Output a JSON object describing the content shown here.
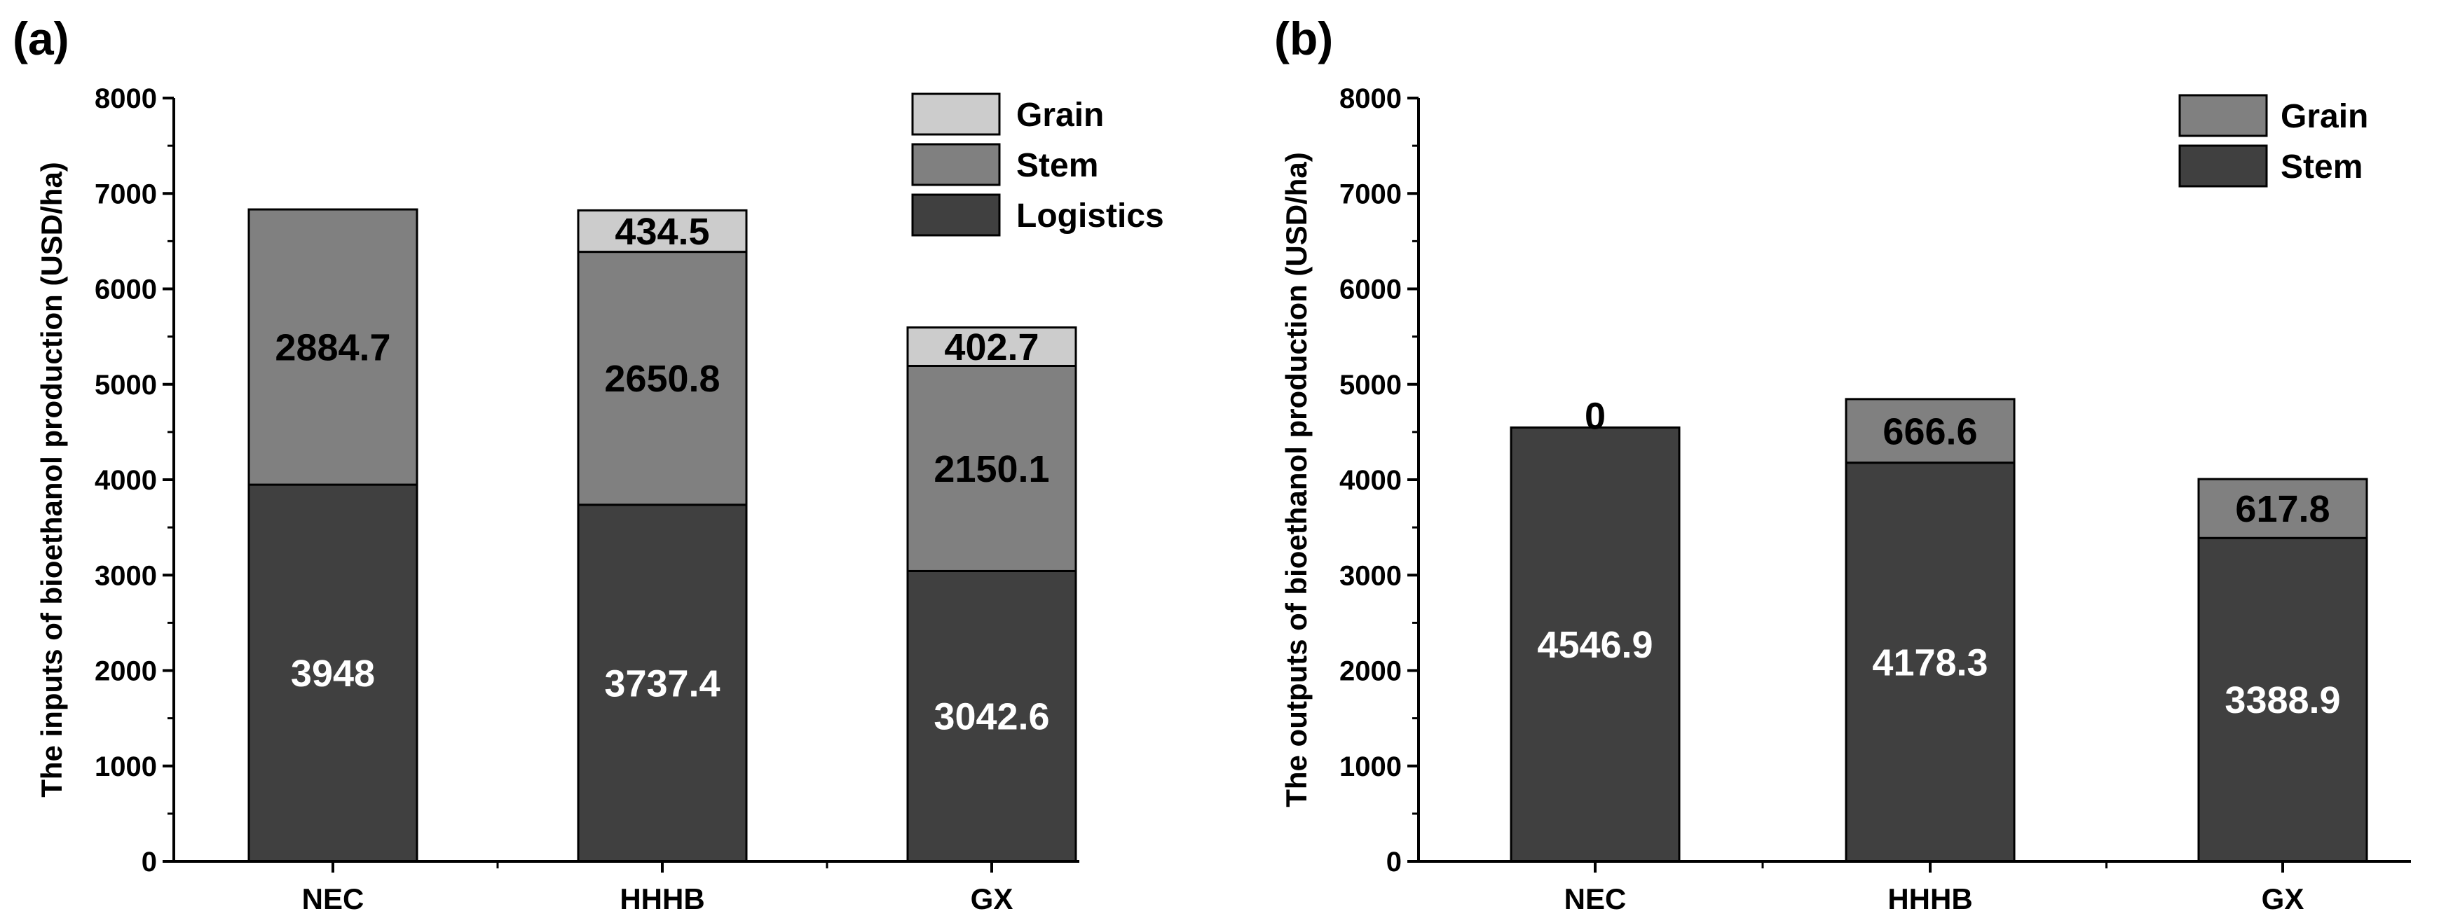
{
  "chart_data": [
    {
      "type": "bar",
      "stacked": true,
      "panel_label": "(a)",
      "title": "",
      "xlabel": "",
      "ylabel": "The  inputs of bioethanol production (USD/ha)",
      "ylim": [
        0,
        8000
      ],
      "yticks": [
        "0",
        "1000",
        "2000",
        "3000",
        "4000",
        "5000",
        "6000",
        "7000",
        "8000"
      ],
      "categories": [
        "NEC",
        "HHHB",
        "GX"
      ],
      "series": [
        {
          "name": "Logistics",
          "color": "#404040",
          "label_color": "#ffffff",
          "values": [
            3948,
            3737.4,
            3042.6
          ],
          "labels": [
            "3948",
            "3737.4",
            "3042.6"
          ]
        },
        {
          "name": "Stem",
          "color": "#808080",
          "label_color": "#000000",
          "values": [
            2884.7,
            2650.8,
            2150.1
          ],
          "labels": [
            "2884.7",
            "2650.8",
            "2150.1"
          ]
        },
        {
          "name": "Grain",
          "color": "#cccccc",
          "label_color": "#000000",
          "values": [
            0,
            434.5,
            402.7
          ],
          "labels": [
            "",
            "434.5",
            "402.7"
          ]
        }
      ],
      "legend": [
        "Grain",
        "Stem",
        "Logistics"
      ],
      "legend_position": "top-right"
    },
    {
      "type": "bar",
      "stacked": true,
      "panel_label": "(b)",
      "title": "",
      "xlabel": "",
      "ylabel": "The  outputs of bioethanol production (USD/ha)",
      "ylim": [
        0,
        8000
      ],
      "yticks": [
        "0",
        "1000",
        "2000",
        "3000",
        "4000",
        "5000",
        "6000",
        "7000",
        "8000"
      ],
      "categories": [
        "NEC",
        "HHHB",
        "GX"
      ],
      "series": [
        {
          "name": "Stem",
          "color": "#404040",
          "label_color": "#ffffff",
          "values": [
            4546.9,
            4178.3,
            3388.9
          ],
          "labels": [
            "4546.9",
            "4178.3",
            "3388.9"
          ]
        },
        {
          "name": "Grain",
          "color": "#808080",
          "label_color": "#000000",
          "values": [
            0,
            666.6,
            617.8
          ],
          "labels": [
            "0",
            "666.6",
            "617.8"
          ]
        }
      ],
      "legend": [
        "Grain",
        "Stem"
      ],
      "legend_position": "top-right"
    }
  ]
}
